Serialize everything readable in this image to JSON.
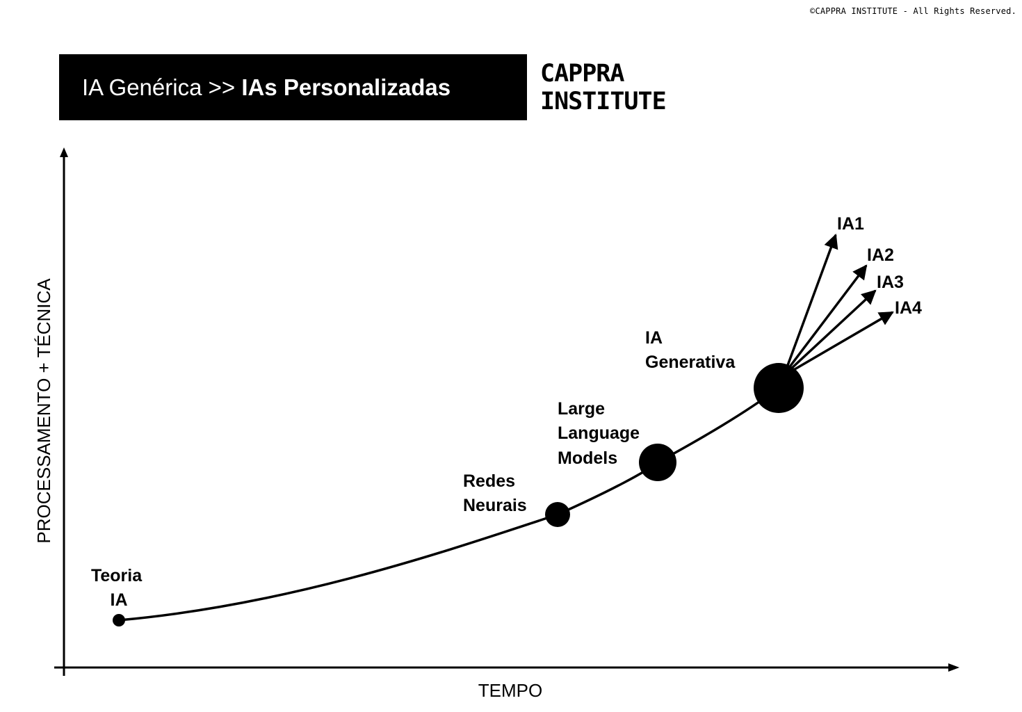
{
  "copyright": "©CAPPRA INSTITUTE - All Rights Reserved.",
  "title": {
    "part1": "IA Genérica >> ",
    "part2": "IAs Personalizadas"
  },
  "brand": {
    "line1": "CAPPRA",
    "line2": "INSTITUTE"
  },
  "axes": {
    "x_label": "TEMPO",
    "y_label": "PROCESSAMENTO + TÉCNICA"
  },
  "milestones": [
    {
      "id": "teoria",
      "lines": [
        "Teoria",
        "IA"
      ]
    },
    {
      "id": "redes",
      "lines": [
        "Redes",
        "Neurais"
      ]
    },
    {
      "id": "llm",
      "lines": [
        "Large",
        "Language",
        "Models"
      ]
    },
    {
      "id": "generativa",
      "lines": [
        "IA",
        "Generativa"
      ]
    }
  ],
  "branches": [
    "IA1",
    "IA2",
    "IA3",
    "IA4"
  ],
  "colors": {
    "background": "#ffffff",
    "foreground": "#000000"
  }
}
